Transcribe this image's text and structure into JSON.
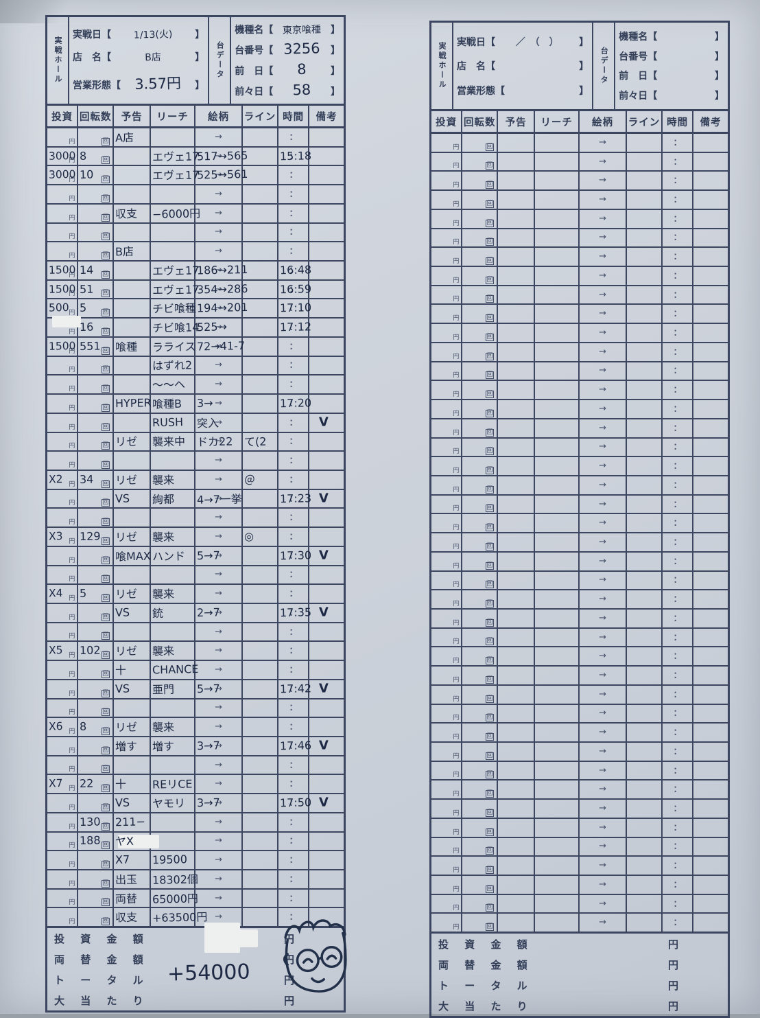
{
  "photo": {
    "paper_color": "#cfd4dc",
    "line_color": "#3c4660",
    "ink_color": "#1c2844",
    "doodle_icon": "smiley-face-with-glasses-doodle"
  },
  "brackets": {
    "open": "【",
    "close": "】"
  },
  "columns": [
    "投資",
    "回転数",
    "予告",
    "リーチ",
    "絵柄",
    "ライン",
    "時間",
    "備考"
  ],
  "preprint": {
    "yen": "円",
    "kai": "回",
    "arrow": "→",
    "colon": "："
  },
  "left_form": {
    "header": {
      "hall_label": "実戦ホール",
      "date_label": "実戦日",
      "date_value": "1/13(火)",
      "shop_label": "店　名",
      "shop_value": "B店",
      "biz_label": "営業形態",
      "biz_value": "3.57円",
      "unit_label": "台データ",
      "model_label": "機種名",
      "model_value": "東京喰種",
      "machine_no_label": "台番号",
      "machine_no_value": "3256",
      "prev_day_label": "前　日",
      "prev_day_value": "8",
      "prev2_day_label": "前々日",
      "prev2_day_value": "58"
    },
    "row_count": 42,
    "rows": [
      [
        "",
        "",
        "A店",
        "",
        "",
        "",
        "",
        ""
      ],
      [
        "3000",
        "8",
        "",
        "エヴェ17",
        "517→565",
        "",
        "15:18",
        ""
      ],
      [
        "3000",
        "10",
        "",
        "エヴェ17",
        "525→561",
        "",
        "",
        ""
      ],
      [
        "",
        "",
        "",
        "",
        "",
        "",
        "",
        ""
      ],
      [
        "",
        "",
        "収支",
        "−6000円",
        "",
        "",
        "",
        ""
      ],
      [
        "",
        "",
        "",
        "",
        "",
        "",
        "",
        ""
      ],
      [
        "",
        "",
        "B店",
        "",
        "",
        "",
        "",
        ""
      ],
      [
        "1500",
        "14",
        "",
        "エヴェ17",
        "186→211",
        "",
        "16:48",
        ""
      ],
      [
        "1500",
        "51",
        "",
        "エヴェ17",
        "354→286",
        "",
        "16:59",
        ""
      ],
      [
        "500",
        "5",
        "",
        "チビ喰種",
        "194→201",
        "",
        "17:10",
        ""
      ],
      [
        "",
        "16",
        "",
        "チビ喰14",
        "525→",
        "",
        "17:12",
        ""
      ],
      [
        "1500",
        "551",
        "喰種",
        "ラライス",
        "72→41-7",
        "",
        "",
        ""
      ],
      [
        "",
        "",
        "",
        "はずれ2",
        "",
        "",
        "",
        ""
      ],
      [
        "",
        "",
        "",
        "〜〜ヘ",
        "",
        "",
        "",
        ""
      ],
      [
        "",
        "",
        "HYPER",
        "喰種B",
        "3→",
        "",
        "17:20",
        ""
      ],
      [
        "",
        "",
        "",
        "RUSH",
        "突入",
        "",
        "",
        "V"
      ],
      [
        "",
        "",
        "リゼ",
        "襲来中",
        "ドカ22",
        "て(2",
        "",
        ""
      ],
      [
        "",
        "",
        "",
        "",
        "",
        "",
        "",
        ""
      ],
      [
        "X2",
        "34",
        "リゼ",
        "襲来",
        "",
        "＠",
        "",
        ""
      ],
      [
        "",
        "",
        "VS",
        "絢都",
        "4→7一挙",
        "",
        "17:23",
        "V"
      ],
      [
        "",
        "",
        "",
        "",
        "",
        "",
        "",
        ""
      ],
      [
        "X3",
        "129",
        "リゼ",
        "襲来",
        "",
        "◎",
        "",
        ""
      ],
      [
        "",
        "",
        "喰MAX",
        "ハンド",
        "5→7",
        "",
        "17:30",
        "V"
      ],
      [
        "",
        "",
        "",
        "",
        "",
        "",
        "",
        ""
      ],
      [
        "X4",
        "5",
        "リゼ",
        "襲来",
        "",
        "",
        "",
        ""
      ],
      [
        "",
        "",
        "VS",
        "銃",
        "2→7",
        "",
        "17:35",
        "V"
      ],
      [
        "",
        "",
        "",
        "",
        "",
        "",
        "",
        ""
      ],
      [
        "X5",
        "102",
        "リゼ",
        "襲来",
        "",
        "",
        "",
        ""
      ],
      [
        "",
        "",
        "十",
        "CHANCE",
        "",
        "",
        "",
        ""
      ],
      [
        "",
        "",
        "VS",
        "亜門",
        "5→7",
        "",
        "17:42",
        "V"
      ],
      [
        "",
        "",
        "",
        "",
        "",
        "",
        "",
        ""
      ],
      [
        "X6",
        "8",
        "リゼ",
        "襲来",
        "",
        "",
        "",
        ""
      ],
      [
        "",
        "",
        "増す",
        "増す",
        "3→7",
        "",
        "17:46",
        "V"
      ],
      [
        "",
        "",
        "",
        "",
        "",
        "",
        "",
        ""
      ],
      [
        "X7",
        "22",
        "十",
        "REリCE",
        "",
        "",
        "",
        ""
      ],
      [
        "",
        "",
        "VS",
        "ヤモリ",
        "3→7",
        "",
        "17:50",
        "V"
      ],
      [
        "",
        "130",
        "211−",
        "",
        "",
        "",
        "",
        ""
      ],
      [
        "",
        "188",
        "ヤX",
        "",
        "",
        "",
        "",
        ""
      ],
      [
        "",
        "",
        "X7",
        "19500",
        "",
        "",
        "",
        ""
      ],
      [
        "",
        "",
        "出玉",
        "18302個",
        "",
        "",
        "",
        ""
      ],
      [
        "",
        "",
        "両替",
        "65000円",
        "",
        "",
        "",
        ""
      ],
      [
        "",
        "",
        "収支",
        "+63500円",
        "",
        "",
        "",
        ""
      ]
    ],
    "footer": {
      "rows": [
        {
          "label": "投 資 金 額",
          "value": "",
          "unit": "円"
        },
        {
          "label": "両 替 金 額",
          "value": "",
          "unit": "円"
        },
        {
          "label": "ト ー タ ル",
          "value": "+54000",
          "unit": "円"
        },
        {
          "label": "大 当 た り",
          "value": "",
          "unit": "円"
        }
      ]
    }
  },
  "right_form": {
    "header": {
      "hall_label": "実戦ホール",
      "date_label": "実戦日",
      "date_print": "／　（　）",
      "shop_label": "店　名",
      "shop_value": "",
      "biz_label": "営業形態",
      "biz_value": "",
      "unit_label": "台データ",
      "model_label": "機種名",
      "model_value": "",
      "machine_no_label": "台番号",
      "machine_no_value": "",
      "prev_day_label": "前　日",
      "prev_day_value": "",
      "prev2_day_label": "前々日",
      "prev2_day_value": ""
    },
    "row_count": 42,
    "rows": [],
    "footer": {
      "rows": [
        {
          "label": "投 資 金 額",
          "value": "",
          "unit": "円"
        },
        {
          "label": "両 替 金 額",
          "value": "",
          "unit": "円"
        },
        {
          "label": "ト ー タ ル",
          "value": "",
          "unit": "円"
        },
        {
          "label": "大 当 た り",
          "value": "",
          "unit": "円"
        }
      ]
    }
  }
}
